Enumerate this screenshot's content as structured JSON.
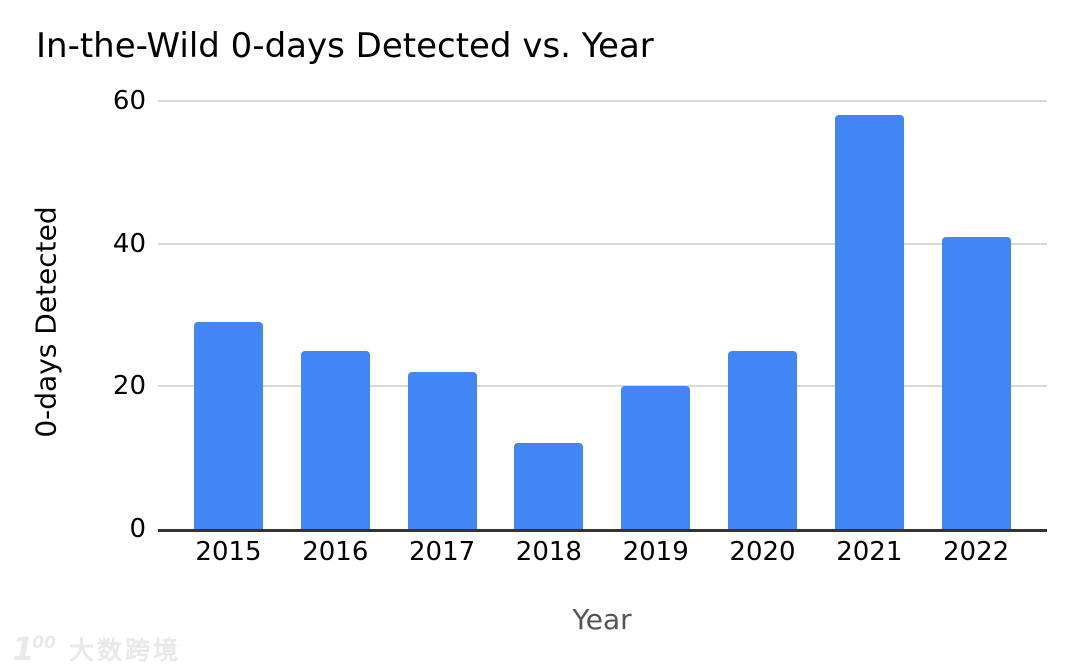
{
  "title": "In-the-Wild 0-days Detected vs. Year",
  "watermark": {
    "logo_leading": "1",
    "logo_oo": "00",
    "text": "大数跨境"
  },
  "chart_data": {
    "type": "bar",
    "title": "In-the-Wild 0-days Detected vs. Year",
    "xlabel": "Year",
    "ylabel": "0-days Detected",
    "categories": [
      "2015",
      "2016",
      "2017",
      "2018",
      "2019",
      "2020",
      "2021",
      "2022"
    ],
    "values": [
      29,
      25,
      22,
      12,
      20,
      25,
      58,
      41
    ],
    "ylim": [
      0,
      60
    ],
    "yticks": [
      0,
      20,
      40,
      60
    ],
    "grid": true,
    "legend": false,
    "bar_color": "#4285f4",
    "gridline_color": "#d9d9d9",
    "axis_line_color": "#333333",
    "text_color": "#000000",
    "x_axis_title_color": "#555555",
    "watermark_color": "#e9e9e9"
  }
}
